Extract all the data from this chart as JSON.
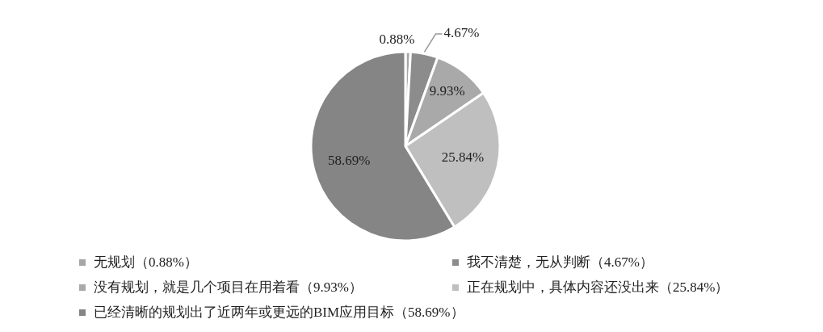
{
  "chart_data": {
    "type": "pie",
    "categories": [
      "无规划（0.88%）",
      "我不清楚，无从判断（4.67%）",
      "没有规划，就是几个项目在用着看（9.93%）",
      "正在规划中，具体内容还没出来（25.84%）",
      "已经清晰的规划出了近两年或更远的BIM应用目标（58.69%）"
    ],
    "values": [
      0.88,
      4.67,
      9.93,
      25.84,
      58.69
    ],
    "colors": [
      "#a6a6a6",
      "#8c8c8c",
      "#a9a9a9",
      "#bfbfbf",
      "#858585"
    ],
    "value_labels": [
      "0.88%",
      "4.67%",
      "9.93%",
      "25.84%",
      "58.69%"
    ],
    "legend": "bottom"
  }
}
